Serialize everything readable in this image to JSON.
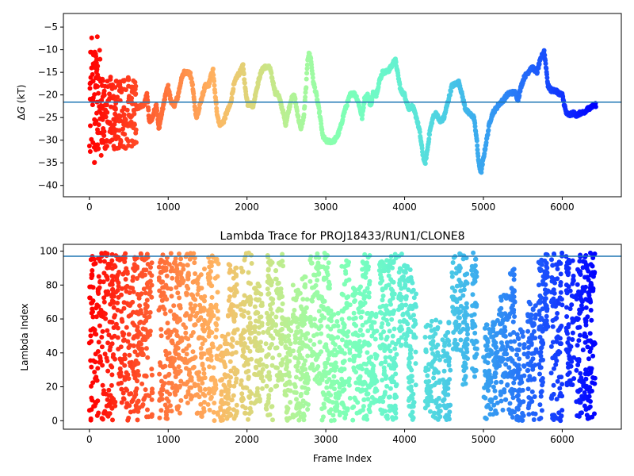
{
  "chart_data": [
    {
      "type": "scatter",
      "title": "",
      "xlabel": "",
      "ylabel": "ΔG (kT)",
      "ylabel_math": "Δ",
      "ylabel_var": "G",
      "ylabel_unit": " (kT)",
      "xlim": [
        -330,
        6750
      ],
      "ylim": [
        -42.5,
        -2
      ],
      "xticks": [
        0,
        1000,
        2000,
        3000,
        4000,
        5000,
        6000
      ],
      "yticks": [
        -40,
        -35,
        -30,
        -25,
        -20,
        -15,
        -10,
        -5
      ],
      "colormap": "rainbow (frame index; late frames purple, early frames red)",
      "hline": -21.6,
      "hline_color": "#1f77b4",
      "marker_size": 3,
      "trace": [
        [
          600,
          -23
        ],
        [
          700,
          -22
        ],
        [
          730,
          -19.5
        ],
        [
          760,
          -26
        ],
        [
          800,
          -25
        ],
        [
          850,
          -22
        ],
        [
          880,
          -27.5
        ],
        [
          930,
          -23
        ],
        [
          980,
          -19
        ],
        [
          1000,
          -18.2
        ],
        [
          1030,
          -21
        ],
        [
          1070,
          -22.5
        ],
        [
          1120,
          -20.5
        ],
        [
          1160,
          -17
        ],
        [
          1200,
          -15
        ],
        [
          1250,
          -15
        ],
        [
          1280,
          -15.5
        ],
        [
          1310,
          -18
        ],
        [
          1340,
          -23
        ],
        [
          1360,
          -25
        ],
        [
          1380,
          -24
        ],
        [
          1420,
          -21
        ],
        [
          1470,
          -18
        ],
        [
          1510,
          -18
        ],
        [
          1540,
          -16
        ],
        [
          1570,
          -14.5
        ],
        [
          1590,
          -19
        ],
        [
          1620,
          -24
        ],
        [
          1650,
          -26.5
        ],
        [
          1700,
          -26
        ],
        [
          1740,
          -24
        ],
        [
          1790,
          -22
        ],
        [
          1830,
          -18
        ],
        [
          1870,
          -16
        ],
        [
          1910,
          -15
        ],
        [
          1950,
          -13.5
        ],
        [
          1980,
          -19
        ],
        [
          2010,
          -22
        ],
        [
          2050,
          -22
        ],
        [
          2080,
          -22.5
        ],
        [
          2110,
          -19.5
        ],
        [
          2160,
          -16
        ],
        [
          2200,
          -14
        ],
        [
          2250,
          -13.8
        ],
        [
          2290,
          -14
        ],
        [
          2320,
          -16.5
        ],
        [
          2360,
          -19.5
        ],
        [
          2400,
          -20
        ],
        [
          2430,
          -22
        ],
        [
          2460,
          -24
        ],
        [
          2490,
          -26.5
        ],
        [
          2520,
          -24
        ],
        [
          2560,
          -21
        ],
        [
          2600,
          -20
        ],
        [
          2640,
          -24
        ],
        [
          2680,
          -27.5
        ],
        [
          2720,
          -25
        ],
        [
          2750,
          -18
        ],
        [
          2770,
          -12
        ],
        [
          2790,
          -10.8
        ],
        [
          2810,
          -12
        ],
        [
          2840,
          -17
        ],
        [
          2880,
          -20
        ],
        [
          2920,
          -24
        ],
        [
          2960,
          -29
        ],
        [
          3000,
          -30.2
        ],
        [
          3050,
          -30.3
        ],
        [
          3100,
          -30.2
        ],
        [
          3150,
          -29
        ],
        [
          3190,
          -27
        ],
        [
          3230,
          -24
        ],
        [
          3270,
          -22
        ],
        [
          3310,
          -20
        ],
        [
          3350,
          -19.5
        ],
        [
          3390,
          -20.5
        ],
        [
          3420,
          -22
        ],
        [
          3460,
          -25
        ],
        [
          3490,
          -21
        ],
        [
          3530,
          -20
        ],
        [
          3570,
          -22.5
        ],
        [
          3600,
          -19.5
        ],
        [
          3640,
          -20
        ],
        [
          3680,
          -17
        ],
        [
          3720,
          -15
        ],
        [
          3760,
          -15
        ],
        [
          3800,
          -14.5
        ],
        [
          3840,
          -13.5
        ],
        [
          3880,
          -12
        ],
        [
          3910,
          -15
        ],
        [
          3950,
          -19
        ],
        [
          4000,
          -20
        ],
        [
          4050,
          -23
        ],
        [
          4100,
          -22.5
        ],
        [
          4150,
          -25
        ],
        [
          4190,
          -28
        ],
        [
          4230,
          -33
        ],
        [
          4260,
          -35.2
        ],
        [
          4290,
          -32
        ],
        [
          4320,
          -28
        ],
        [
          4360,
          -25
        ],
        [
          4400,
          -24
        ],
        [
          4450,
          -26
        ],
        [
          4500,
          -25
        ],
        [
          4550,
          -21.5
        ],
        [
          4600,
          -18
        ],
        [
          4650,
          -17.5
        ],
        [
          4690,
          -17.2
        ],
        [
          4730,
          -20
        ],
        [
          4770,
          -23
        ],
        [
          4810,
          -24
        ],
        [
          4850,
          -24.5
        ],
        [
          4880,
          -25
        ],
        [
          4910,
          -29
        ],
        [
          4940,
          -35
        ],
        [
          4970,
          -37.2
        ],
        [
          5000,
          -34
        ],
        [
          5040,
          -30
        ],
        [
          5080,
          -26
        ],
        [
          5120,
          -24
        ],
        [
          5160,
          -23
        ],
        [
          5200,
          -22
        ],
        [
          5260,
          -21
        ],
        [
          5300,
          -20
        ],
        [
          5340,
          -19.5
        ],
        [
          5400,
          -19.5
        ],
        [
          5440,
          -21
        ],
        [
          5480,
          -18
        ],
        [
          5520,
          -16
        ],
        [
          5560,
          -15.2
        ],
        [
          5600,
          -14
        ],
        [
          5640,
          -14.2
        ],
        [
          5680,
          -15
        ],
        [
          5710,
          -13
        ],
        [
          5740,
          -11.5
        ],
        [
          5770,
          -10.3
        ],
        [
          5790,
          -13
        ],
        [
          5820,
          -18
        ],
        [
          5860,
          -19
        ],
        [
          5900,
          -19
        ],
        [
          5950,
          -19.5
        ],
        [
          6000,
          -20
        ],
        [
          6050,
          -24
        ],
        [
          6090,
          -24.5
        ],
        [
          6140,
          -24
        ],
        [
          6190,
          -24.5
        ],
        [
          6230,
          -24
        ],
        [
          6280,
          -24
        ],
        [
          6330,
          -23
        ],
        [
          6380,
          -22.5
        ],
        [
          6430,
          -22.2
        ]
      ]
    },
    {
      "type": "scatter",
      "title": "Lambda Trace for PROJ18433/RUN1/CLONE8",
      "xlabel": "Frame Index",
      "ylabel": "Lambda Index",
      "xlim": [
        -330,
        6750
      ],
      "ylim": [
        -5,
        104
      ],
      "xticks": [
        0,
        1000,
        2000,
        3000,
        4000,
        5000,
        6000
      ],
      "yticks": [
        0,
        20,
        40,
        60,
        80,
        100
      ],
      "colormap": "rainbow (frame index; late frames purple, early frames red)",
      "hline": 97,
      "hline_color": "#1f77b4",
      "marker_size": 3,
      "bands": [
        [
          0,
          300,
          0,
          99
        ],
        [
          280,
          620,
          0,
          99
        ],
        [
          620,
          800,
          2,
          99
        ],
        [
          880,
          1060,
          0,
          99
        ],
        [
          1070,
          1200,
          4,
          99
        ],
        [
          1210,
          1350,
          10,
          99
        ],
        [
          1360,
          1470,
          0,
          90
        ],
        [
          1500,
          1640,
          0,
          99
        ],
        [
          1660,
          1760,
          0,
          50
        ],
        [
          1760,
          1880,
          0,
          95
        ],
        [
          1920,
          2060,
          0,
          99
        ],
        [
          2090,
          2210,
          10,
          85
        ],
        [
          2240,
          2330,
          0,
          99
        ],
        [
          2360,
          2460,
          20,
          99
        ],
        [
          2480,
          2560,
          0,
          60
        ],
        [
          2580,
          2700,
          0,
          80
        ],
        [
          2700,
          2780,
          0,
          85
        ],
        [
          2800,
          2950,
          20,
          99
        ],
        [
          2950,
          3050,
          0,
          99
        ],
        [
          3060,
          3180,
          0,
          65
        ],
        [
          3200,
          3310,
          0,
          95
        ],
        [
          3330,
          3450,
          0,
          80
        ],
        [
          3460,
          3560,
          0,
          99
        ],
        [
          3570,
          3650,
          10,
          65
        ],
        [
          3680,
          3790,
          0,
          95
        ],
        [
          3790,
          3900,
          0,
          99
        ],
        [
          3920,
          4050,
          40,
          99
        ],
        [
          4050,
          4150,
          0,
          90
        ],
        [
          4260,
          4460,
          0,
          60
        ],
        [
          4480,
          4580,
          0,
          60
        ],
        [
          4600,
          4720,
          40,
          99
        ],
        [
          4740,
          4800,
          20,
          99
        ],
        [
          4850,
          4920,
          25,
          99
        ],
        [
          5000,
          5110,
          0,
          60
        ],
        [
          5120,
          5180,
          2,
          60
        ],
        [
          5200,
          5310,
          5,
          75
        ],
        [
          5320,
          5400,
          0,
          90
        ],
        [
          5420,
          5520,
          0,
          55
        ],
        [
          5560,
          5670,
          0,
          70
        ],
        [
          5700,
          5760,
          0,
          95
        ],
        [
          5770,
          5820,
          50,
          99
        ],
        [
          5860,
          6000,
          0,
          99
        ],
        [
          6050,
          6150,
          20,
          99
        ],
        [
          6180,
          6300,
          0,
          99
        ],
        [
          6300,
          6420,
          0,
          99
        ]
      ]
    }
  ]
}
